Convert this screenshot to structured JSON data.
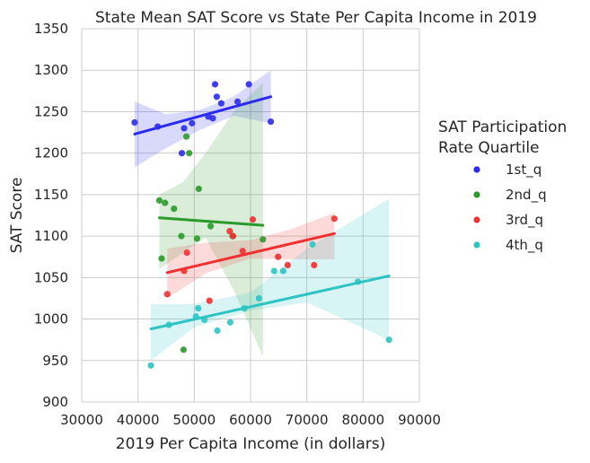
{
  "chart_data": {
    "type": "scatter",
    "title": "State Mean SAT Score vs State Per Capita Income in 2019",
    "xlabel": "2019 Per Capita Income (in dollars)",
    "ylabel": "SAT Score",
    "xlim": [
      30000,
      90000
    ],
    "ylim": [
      900,
      1350
    ],
    "xticks": [
      30000,
      40000,
      50000,
      60000,
      70000,
      80000,
      90000
    ],
    "yticks": [
      900,
      950,
      1000,
      1050,
      1100,
      1150,
      1200,
      1250,
      1300,
      1350
    ],
    "grid": true,
    "legend": {
      "title": "SAT Participation\nRate Quartile",
      "placement": "right"
    },
    "series": [
      {
        "name": "1st_q",
        "color": "#2b2bf0",
        "points": [
          [
            39400,
            1237
          ],
          [
            43500,
            1232
          ],
          [
            47800,
            1200
          ],
          [
            48200,
            1230
          ],
          [
            49600,
            1236
          ],
          [
            52500,
            1244
          ],
          [
            53300,
            1242
          ],
          [
            53700,
            1283
          ],
          [
            54000,
            1268
          ],
          [
            54800,
            1260
          ],
          [
            57700,
            1262
          ],
          [
            59700,
            1283
          ],
          [
            63600,
            1238
          ]
        ],
        "regression": {
          "x": [
            39400,
            63600
          ],
          "y": [
            1223,
            1268
          ]
        },
        "ci_upper": [
          [
            39400,
            1262
          ],
          [
            45000,
            1247
          ],
          [
            51000,
            1252
          ],
          [
            57000,
            1268
          ],
          [
            63600,
            1300
          ]
        ],
        "ci_lower": [
          [
            39400,
            1183
          ],
          [
            45000,
            1206
          ],
          [
            51000,
            1228
          ],
          [
            57000,
            1245
          ],
          [
            63600,
            1236
          ]
        ]
      },
      {
        "name": "2nd_q",
        "color": "#2a9a2a",
        "points": [
          [
            43800,
            1143
          ],
          [
            44200,
            1073
          ],
          [
            44800,
            1140
          ],
          [
            46400,
            1133
          ],
          [
            47700,
            1100
          ],
          [
            48100,
            963
          ],
          [
            48600,
            1220
          ],
          [
            49100,
            1200
          ],
          [
            50500,
            1097
          ],
          [
            50800,
            1157
          ],
          [
            52900,
            1112
          ],
          [
            56800,
            1100
          ],
          [
            62200,
            1096
          ]
        ],
        "regression": {
          "x": [
            43800,
            62200
          ],
          "y": [
            1122,
            1113
          ]
        },
        "ci_upper": [
          [
            43800,
            1150
          ],
          [
            48000,
            1165
          ],
          [
            52000,
            1200
          ],
          [
            57000,
            1250
          ],
          [
            62200,
            1285
          ]
        ],
        "ci_lower": [
          [
            43800,
            1060
          ],
          [
            48000,
            1080
          ],
          [
            52000,
            1098
          ],
          [
            57000,
            1035
          ],
          [
            62200,
            955
          ]
        ]
      },
      {
        "name": "3rd_q",
        "color": "#f03030",
        "points": [
          [
            45200,
            1030
          ],
          [
            48200,
            1058
          ],
          [
            48700,
            1080
          ],
          [
            52700,
            1022
          ],
          [
            56300,
            1106
          ],
          [
            56900,
            1100
          ],
          [
            58600,
            1082
          ],
          [
            60400,
            1120
          ],
          [
            64900,
            1075
          ],
          [
            66600,
            1065
          ],
          [
            71300,
            1065
          ],
          [
            74900,
            1121
          ]
        ],
        "regression": {
          "x": [
            45200,
            74900
          ],
          "y": [
            1056,
            1103
          ]
        },
        "ci_upper": [
          [
            45200,
            1085
          ],
          [
            52000,
            1092
          ],
          [
            60000,
            1095
          ],
          [
            67000,
            1108
          ],
          [
            74900,
            1128
          ]
        ],
        "ci_lower": [
          [
            45200,
            1025
          ],
          [
            52000,
            1055
          ],
          [
            60000,
            1073
          ],
          [
            67000,
            1072
          ],
          [
            74900,
            1072
          ]
        ]
      },
      {
        "name": "4th_q",
        "color": "#2ec4c4",
        "points": [
          [
            42300,
            944
          ],
          [
            45500,
            993
          ],
          [
            50300,
            1003
          ],
          [
            50700,
            1013
          ],
          [
            51800,
            999
          ],
          [
            54100,
            986
          ],
          [
            56400,
            996
          ],
          [
            58900,
            1013
          ],
          [
            61500,
            1025
          ],
          [
            64200,
            1058
          ],
          [
            65800,
            1058
          ],
          [
            71000,
            1090
          ],
          [
            79100,
            1045
          ],
          [
            84600,
            975
          ]
        ],
        "regression": {
          "x": [
            42300,
            84600
          ],
          "y": [
            988,
            1052
          ]
        },
        "ci_upper": [
          [
            42300,
            1018
          ],
          [
            50000,
            1018
          ],
          [
            60000,
            1032
          ],
          [
            70000,
            1085
          ],
          [
            84600,
            1145
          ]
        ],
        "ci_lower": [
          [
            42300,
            950
          ],
          [
            50000,
            990
          ],
          [
            60000,
            1010
          ],
          [
            70000,
            1020
          ],
          [
            84600,
            975
          ]
        ]
      }
    ]
  }
}
